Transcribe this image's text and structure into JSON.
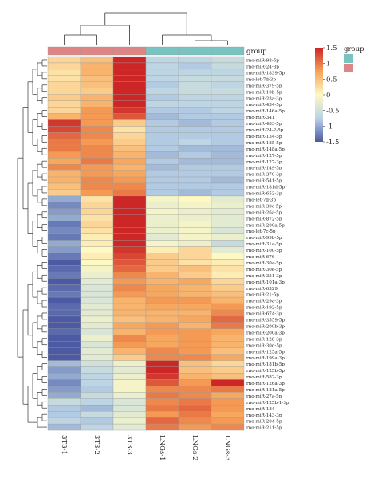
{
  "chart_data": {
    "type": "heatmap",
    "title": "",
    "columns": [
      "3T3-1",
      "3T3-2",
      "3T3-3",
      "LNGs-1",
      "LNGs-2",
      "LNGs-3"
    ],
    "column_groups": [
      "3T3",
      "3T3",
      "3T3",
      "LNGs",
      "LNGs",
      "LNGs"
    ],
    "group_annotation": {
      "label": "group",
      "legend_title": "group",
      "levels": [
        {
          "name": "LNGs",
          "color": "#79c3c1"
        },
        {
          "name": "3T3",
          "color": "#df8585"
        }
      ]
    },
    "rows": [
      "rno-miR-98-5p",
      "rno-miR-24-3p",
      "rno-miR-1839-5p",
      "rno-let-7d-3p",
      "rno-miR-379-5p",
      "rno-miR-10b-5p",
      "rno-miR-23a-3p",
      "rno-miR-434-5p",
      "rno-miR-146a-5p",
      "rno-miR-341",
      "rno-miR-483-5p",
      "rno-miR-24-2-5p",
      "rno-miR-134-5p",
      "rno-miR-185-5p",
      "rno-miR-148a-5p",
      "rno-miR-127-5p",
      "rno-miR-127-3p",
      "rno-miR-149-5p",
      "rno-miR-370-3p",
      "rno-miR-541-5p",
      "rno-miR-181d-5p",
      "rno-miR-652-3p",
      "rno-let-7g-3p",
      "rno-miR-30c-5p",
      "rno-miR-26a-5p",
      "rno-miR-872-5p",
      "rno-miR-200a-5p",
      "rno-let-7c-5p",
      "rno-miR-99b-5p",
      "rno-miR-31a-5p",
      "rno-miR-100-5p",
      "rno-miR-676",
      "rno-miR-30a-5p",
      "rno-miR-30e-5p",
      "rno-miR-351-3p",
      "rno-miR-101a-3p",
      "rno-miR-6329",
      "rno-miR-21-5p",
      "rno-miR-29a-3p",
      "rno-miR-192-5p",
      "rno-miR-674-3p",
      "rno-miR-3559-5p",
      "rno-miR-200b-3p",
      "rno-miR-200a-3p",
      "rno-miR-128-3p",
      "rno-miR-30d-5p",
      "rno-miR-125a-5p",
      "rno-miR-199a-3p",
      "rno-miR-181b-5p",
      "rno-miR-125b-5p",
      "rno-miR-582-3p",
      "rno-miR-126a-3p",
      "rno-miR-181a-5p",
      "rno-miR-27a-5p",
      "rno-miR-125b-1-3p",
      "rno-miR-184",
      "rno-miR-143-3p",
      "rno-miR-204-5p",
      "rno-miR-211-5p"
    ],
    "values": [
      [
        0.3,
        0.5,
        1.7,
        -0.7,
        -0.7,
        -0.6
      ],
      [
        0.3,
        0.6,
        1.7,
        -0.7,
        -0.8,
        -0.6
      ],
      [
        0.2,
        0.6,
        1.6,
        -0.7,
        -0.7,
        -0.7
      ],
      [
        0.2,
        0.5,
        1.5,
        -0.7,
        -0.6,
        -0.6
      ],
      [
        0.3,
        0.5,
        1.6,
        -0.8,
        -0.6,
        -0.7
      ],
      [
        0.3,
        0.4,
        1.5,
        -0.7,
        -0.6,
        -0.6
      ],
      [
        0.4,
        0.6,
        1.5,
        -0.8,
        -0.7,
        -0.7
      ],
      [
        0.3,
        0.6,
        1.5,
        -0.7,
        -0.7,
        -0.7
      ],
      [
        0.3,
        0.8,
        1.4,
        -0.8,
        -0.8,
        -0.7
      ],
      [
        0.6,
        0.8,
        1.2,
        -0.9,
        -0.8,
        -0.8
      ],
      [
        1.4,
        0.8,
        0.4,
        -0.8,
        -0.9,
        -0.8
      ],
      [
        1.3,
        0.9,
        0.2,
        -0.8,
        -0.8,
        -0.8
      ],
      [
        1.1,
        0.9,
        0.3,
        -0.8,
        -0.8,
        -0.8
      ],
      [
        1.0,
        0.8,
        0.4,
        -0.8,
        -0.7,
        -0.8
      ],
      [
        1.0,
        0.9,
        0.5,
        -0.8,
        -0.9,
        -0.9
      ],
      [
        0.8,
        0.9,
        0.6,
        -0.9,
        -0.8,
        -0.9
      ],
      [
        0.7,
        1.0,
        0.7,
        -0.8,
        -0.9,
        -0.9
      ],
      [
        0.9,
        0.8,
        0.6,
        -0.9,
        -0.8,
        -0.8
      ],
      [
        0.6,
        0.8,
        0.7,
        -0.8,
        -0.8,
        -0.8
      ],
      [
        0.6,
        0.9,
        0.8,
        -0.8,
        -0.8,
        -0.9
      ],
      [
        0.5,
        0.9,
        0.9,
        -0.8,
        -0.8,
        -0.8
      ],
      [
        0.4,
        0.8,
        1.0,
        -0.8,
        -0.9,
        -0.8
      ],
      [
        -1.0,
        0.2,
        1.5,
        -0.1,
        0.0,
        -0.3
      ],
      [
        -1.2,
        0.3,
        1.6,
        -0.2,
        -0.1,
        -0.2
      ],
      [
        -1.1,
        0.3,
        1.5,
        -0.1,
        -0.2,
        -0.3
      ],
      [
        -1.0,
        0.2,
        1.6,
        -0.2,
        -0.2,
        -0.3
      ],
      [
        -1.3,
        0.3,
        1.7,
        -0.2,
        -0.1,
        -0.3
      ],
      [
        -1.2,
        0.2,
        1.6,
        -0.2,
        -0.1,
        -0.4
      ],
      [
        -1.3,
        0.1,
        1.7,
        -0.3,
        -0.1,
        -0.2
      ],
      [
        -1.0,
        0.1,
        1.5,
        -0.1,
        -0.2,
        -0.6
      ],
      [
        -1.1,
        0.0,
        1.4,
        0.1,
        0.3,
        -0.3
      ],
      [
        -1.3,
        0.1,
        1.3,
        0.4,
        0.3,
        0.0
      ],
      [
        -1.5,
        0.0,
        1.2,
        0.4,
        0.2,
        0.1
      ],
      [
        -1.4,
        -0.1,
        1.1,
        0.4,
        0.5,
        0.2
      ],
      [
        -1.3,
        -0.2,
        0.9,
        0.6,
        0.4,
        0.1
      ],
      [
        -1.5,
        -0.3,
        0.8,
        0.6,
        0.7,
        0.3
      ],
      [
        -1.4,
        -0.4,
        0.9,
        0.7,
        0.6,
        0.4
      ],
      [
        -1.3,
        -0.4,
        0.8,
        0.7,
        0.6,
        0.5
      ],
      [
        -1.5,
        -0.4,
        0.6,
        0.8,
        0.8,
        0.6
      ],
      [
        -1.4,
        -0.3,
        0.6,
        0.7,
        0.7,
        0.8
      ],
      [
        -1.4,
        -0.3,
        0.6,
        0.6,
        0.6,
        0.9
      ],
      [
        -1.5,
        -0.2,
        0.5,
        0.6,
        0.7,
        1.1
      ],
      [
        -1.5,
        -0.3,
        0.7,
        0.8,
        0.6,
        1.0
      ],
      [
        -1.4,
        -0.4,
        0.6,
        0.8,
        0.8,
        0.7
      ],
      [
        -1.5,
        -0.2,
        0.9,
        0.7,
        0.8,
        0.6
      ],
      [
        -1.6,
        -0.4,
        0.8,
        0.7,
        0.8,
        0.6
      ],
      [
        -1.5,
        -0.3,
        0.6,
        0.9,
        0.8,
        0.5
      ],
      [
        -1.5,
        -0.3,
        0.4,
        0.9,
        0.9,
        0.7
      ],
      [
        -0.9,
        -0.5,
        -0.2,
        1.6,
        0.5,
        0.3
      ],
      [
        -1.1,
        -0.6,
        -0.3,
        1.6,
        0.5,
        0.4
      ],
      [
        -1.0,
        -0.7,
        -0.2,
        1.4,
        0.6,
        0.5
      ],
      [
        -1.2,
        -0.7,
        -0.1,
        1.2,
        0.8,
        1.6
      ],
      [
        -1.1,
        -0.8,
        -0.1,
        0.9,
        0.9,
        1.0
      ],
      [
        -1.0,
        -0.6,
        -0.2,
        1.0,
        0.9,
        0.7
      ],
      [
        -0.6,
        -0.7,
        -0.4,
        0.9,
        1.0,
        0.8
      ],
      [
        -0.8,
        -0.9,
        -0.4,
        1.0,
        1.1,
        0.8
      ],
      [
        -0.8,
        -0.6,
        -0.3,
        0.8,
        1.0,
        0.7
      ],
      [
        -0.7,
        -0.8,
        -0.2,
        1.1,
        0.9,
        0.8
      ],
      [
        -0.9,
        -0.7,
        -0.3,
        1.0,
        0.8,
        0.9
      ]
    ],
    "color_scale": {
      "colors": [
        "#4b5aa3",
        "#b9d3e6",
        "#fef9c3",
        "#f7a258",
        "#cc2626"
      ],
      "min": -1.5,
      "max": 1.5,
      "ticks": [
        "1.5",
        "1",
        "0.5",
        "0",
        "-0.5",
        "-1",
        "-1.5"
      ]
    },
    "legend_placement": "right",
    "grid": true
  }
}
